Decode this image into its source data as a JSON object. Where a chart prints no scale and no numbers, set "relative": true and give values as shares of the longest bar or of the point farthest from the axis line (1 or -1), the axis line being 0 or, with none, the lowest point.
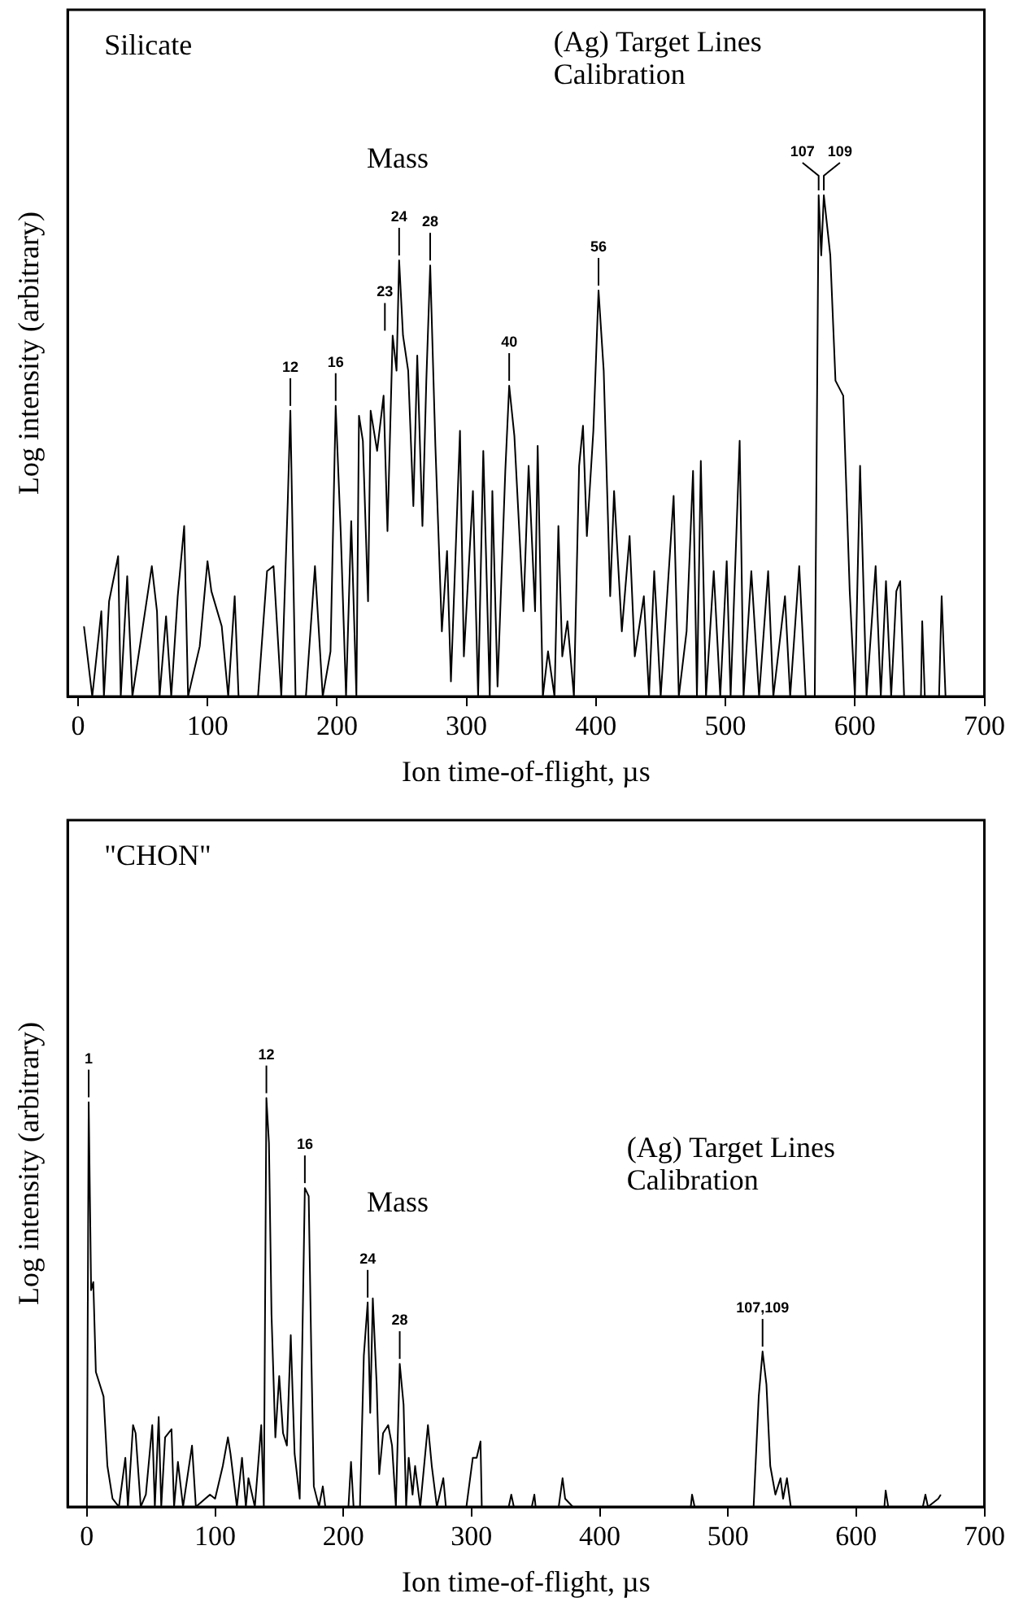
{
  "chart_data": [
    {
      "type": "line",
      "title": "Silicate",
      "xlabel": "Ion time-of-flight, µs",
      "ylabel": "Log intensity (arbitrary)",
      "relative": true,
      "xlim": [
        -8,
        700
      ],
      "xticks": [
        0,
        100,
        200,
        300,
        400,
        500,
        600,
        700
      ],
      "series": [
        {
          "color": "#000000",
          "x": [
            4.6,
            11,
            18,
            20,
            24,
            31,
            33,
            38,
            42,
            57,
            61,
            63,
            68,
            72,
            77,
            82,
            85,
            94,
            100,
            103,
            111,
            116,
            121,
            124,
            139,
            146,
            151,
            157,
            162,
            164,
            168,
            176,
            183,
            189,
            195,
            199,
            203,
            207,
            211,
            215,
            217,
            220,
            224,
            226,
            231,
            236,
            239,
            243,
            246,
            248,
            251,
            255,
            259,
            262,
            266,
            269,
            272,
            276,
            281,
            285,
            288,
            295,
            298,
            305,
            309,
            313,
            318,
            320,
            324,
            330,
            333,
            337,
            344,
            348,
            353,
            355,
            359,
            363,
            368,
            371,
            374,
            378,
            383,
            387,
            390,
            393,
            398,
            402,
            406,
            411,
            414,
            420,
            426,
            430,
            437,
            441,
            445,
            450,
            460,
            464,
            470,
            475,
            478,
            481,
            485,
            491,
            496,
            501,
            504,
            511,
            514,
            520,
            526,
            533,
            537,
            546,
            550,
            557,
            562,
            569,
            572,
            574,
            576,
            581,
            585,
            591,
            596,
            600,
            604,
            609,
            616,
            620,
            624,
            628,
            632,
            635,
            638,
            651,
            652,
            654,
            665,
            667,
            670,
            672
          ],
          "values": [
            0.14,
            0,
            0.17,
            0,
            0.19,
            0.28,
            0,
            0.24,
            0,
            0.26,
            0.17,
            0,
            0.16,
            0,
            0.2,
            0.34,
            0,
            0.1,
            0.27,
            0.21,
            0.14,
            0,
            0.2,
            0,
            0,
            0.25,
            0.26,
            0,
            0.39,
            0.57,
            0,
            0,
            0.26,
            0,
            0.09,
            0.58,
            0.32,
            0,
            0.35,
            0,
            0.56,
            0.51,
            0.19,
            0.57,
            0.49,
            0.6,
            0.33,
            0.72,
            0.65,
            0.87,
            0.72,
            0.65,
            0.38,
            0.68,
            0.34,
            0.63,
            0.86,
            0.5,
            0.13,
            0.29,
            0.03,
            0.53,
            0.08,
            0.41,
            0,
            0.49,
            0,
            0.41,
            0.02,
            0.45,
            0.62,
            0.52,
            0.17,
            0.46,
            0.17,
            0.5,
            0,
            0.09,
            0,
            0.34,
            0.08,
            0.15,
            0,
            0.46,
            0.54,
            0.32,
            0.53,
            0.81,
            0.65,
            0.2,
            0.41,
            0.13,
            0.32,
            0.08,
            0.2,
            0,
            0.25,
            0,
            0.4,
            0,
            0.13,
            0.45,
            0,
            0.47,
            0,
            0.25,
            0,
            0.27,
            0,
            0.51,
            0,
            0.25,
            0,
            0.25,
            0,
            0.2,
            0,
            0.26,
            0,
            0,
            1,
            0.88,
            1,
            0.88,
            0.63,
            0.6,
            0.21,
            0,
            0.46,
            0,
            0.26,
            0,
            0.23,
            0,
            0.21,
            0.23,
            0,
            0,
            0.15,
            0,
            0,
            0.2,
            0,
            0
          ]
        }
      ],
      "annotations": [
        "Mass",
        "(Ag) Target Lines Calibration",
        {
          "text": "12",
          "x": 164,
          "y": 0.57
        },
        {
          "text": "16",
          "x": 199,
          "y": 0.58
        },
        {
          "text": "23",
          "x": 237,
          "y": 0.72
        },
        {
          "text": "24",
          "x": 248,
          "y": 0.87
        },
        {
          "text": "28",
          "x": 272,
          "y": 0.86
        },
        {
          "text": "40",
          "x": 333,
          "y": 0.62
        },
        {
          "text": "56",
          "x": 402,
          "y": 0.81
        },
        {
          "text": "107",
          "x": 572,
          "y": 1
        },
        {
          "text": "109",
          "x": 576,
          "y": 1
        }
      ]
    },
    {
      "type": "line",
      "title": "\"CHON\"",
      "xlabel": "Ion time-of-flight, µs",
      "ylabel": "Log intensity (arbitrary)",
      "relative": true,
      "xlim": [
        -15,
        700
      ],
      "xticks": [
        0,
        100,
        200,
        300,
        400,
        500,
        600,
        700
      ],
      "series": [
        {
          "color": "#000000",
          "x": [
            0,
            1.4,
            3.3,
            5,
            7,
            10,
            13,
            16,
            20,
            25,
            30,
            32,
            36,
            38,
            42,
            46,
            51,
            53,
            56,
            58,
            61,
            66,
            68,
            71,
            75,
            82,
            85,
            96,
            100,
            106,
            110,
            112,
            117,
            121,
            124,
            126,
            131,
            136,
            138,
            140,
            142,
            144,
            147,
            150,
            153,
            156,
            159,
            162,
            166,
            170,
            173,
            175,
            177,
            181,
            184,
            186,
            204,
            206,
            208,
            213,
            216,
            219,
            221,
            223,
            226,
            228,
            231,
            235,
            238,
            241,
            244,
            247,
            249,
            251,
            254,
            256,
            260,
            266,
            269,
            273,
            278,
            280,
            296,
            301,
            304,
            307,
            308,
            329,
            331,
            333,
            347,
            349,
            350,
            368,
            371,
            373,
            379,
            471,
            472,
            474,
            520,
            524,
            527,
            530,
            533,
            537,
            541,
            543,
            546,
            549,
            622,
            623,
            625,
            652,
            654,
            656,
            664,
            666
          ],
          "values": [
            0,
            0.99,
            0.53,
            0.55,
            0.33,
            0.3,
            0.27,
            0.1,
            0.02,
            0,
            0.12,
            0,
            0.2,
            0.18,
            0,
            0.03,
            0.2,
            0,
            0.22,
            0,
            0.17,
            0.19,
            0,
            0.11,
            0,
            0.15,
            0,
            0.03,
            0.02,
            0.1,
            0.17,
            0.13,
            0,
            0.12,
            0,
            0.07,
            0,
            0.2,
            0,
            1,
            0.89,
            0.47,
            0.17,
            0.32,
            0.18,
            0.15,
            0.42,
            0.13,
            0.02,
            0.78,
            0.76,
            0.38,
            0.05,
            0,
            0.05,
            0,
            0,
            0.11,
            0,
            0,
            0.37,
            0.5,
            0.23,
            0.51,
            0.3,
            0.08,
            0.18,
            0.2,
            0.15,
            0,
            0.35,
            0.25,
            0,
            0.12,
            0.03,
            0.1,
            0,
            0.2,
            0.1,
            0,
            0.07,
            0,
            0,
            0.12,
            0.12,
            0.16,
            0,
            0,
            0.03,
            0,
            0,
            0.03,
            0,
            0,
            0.07,
            0.02,
            0,
            0,
            0.03,
            0,
            0,
            0.27,
            0.38,
            0.3,
            0.1,
            0.03,
            0.07,
            0.02,
            0.07,
            0,
            0,
            0.04,
            0,
            0,
            0.03,
            0,
            0.02,
            0.03
          ]
        }
      ],
      "annotations": [
        "Mass",
        "(Ag) Target Lines Calibration",
        {
          "text": "1",
          "x": 1.4,
          "y": 0.99
        },
        {
          "text": "12",
          "x": 140,
          "y": 1
        },
        {
          "text": "16",
          "x": 170,
          "y": 0.78
        },
        {
          "text": "24",
          "x": 219,
          "y": 0.5
        },
        {
          "text": "28",
          "x": 244,
          "y": 0.35
        },
        {
          "text": "107,109",
          "x": 527,
          "y": 0.38
        }
      ]
    }
  ]
}
